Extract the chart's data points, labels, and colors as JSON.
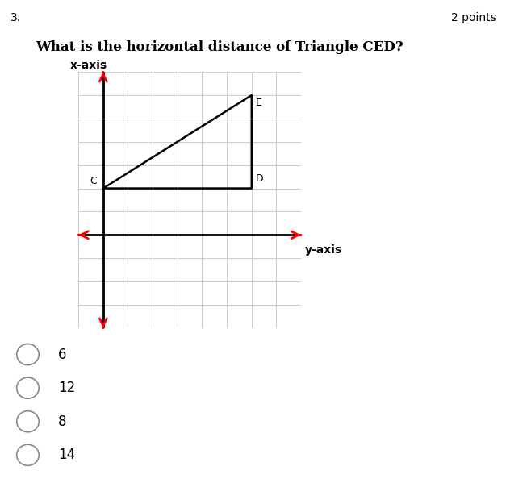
{
  "title": "What is the horizontal distance of Triangle CED?",
  "question_number": "3.",
  "points": "2 points",
  "grid_xlim": [
    -1,
    8
  ],
  "grid_ylim": [
    -4,
    7
  ],
  "C": [
    0,
    2
  ],
  "D": [
    6,
    2
  ],
  "E": [
    6,
    6
  ],
  "triangle_color": "black",
  "triangle_lw": 1.8,
  "grid_color": "#cccccc",
  "arrow_color": "red",
  "axis_line_color": "black",
  "xlabel": "y-axis",
  "ylabel": "x-axis",
  "options": [
    "6",
    "12",
    "8",
    "14"
  ],
  "font_size_title": 12,
  "font_size_labels": 10,
  "font_size_options": 12,
  "bg_color": "white"
}
